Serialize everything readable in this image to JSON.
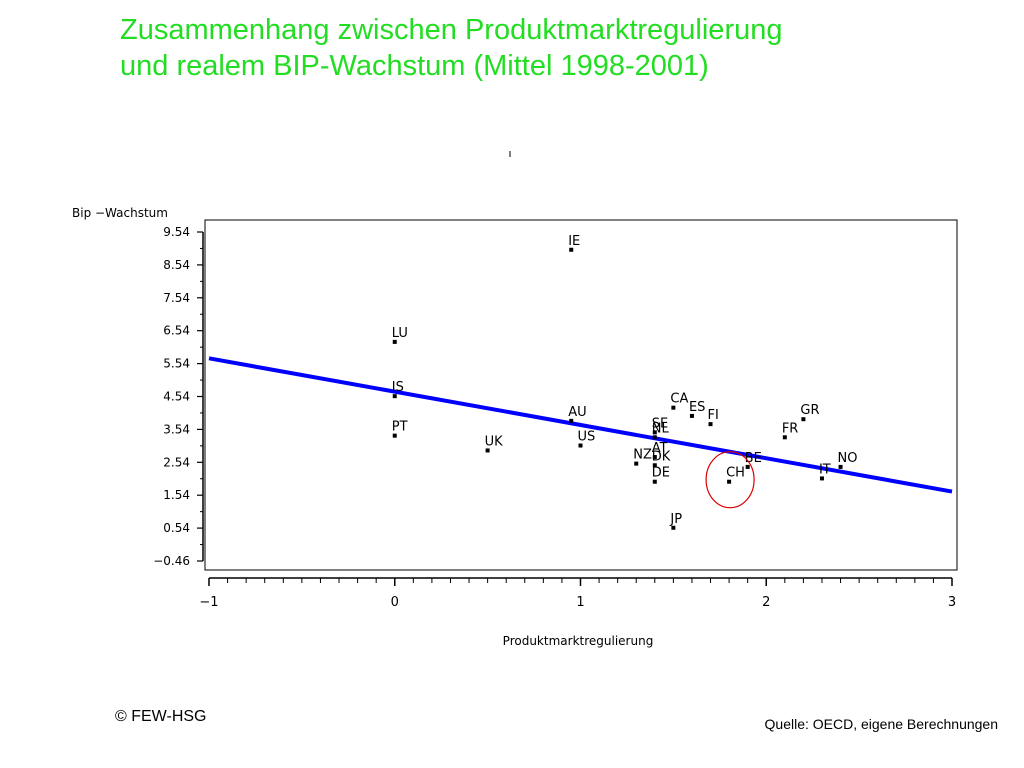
{
  "slide": {
    "title_line1": "Zusammenhang zwischen Produktmarktregulierung",
    "title_line2": "und realem BIP-Wachstum (Mittel 1998-2001)",
    "copyright": "© FEW-HSG",
    "source": "Quelle: OECD, eigene Berechnungen"
  },
  "colors": {
    "title": "#22dd22",
    "regression_line": "#0000ff",
    "highlight_circle": "#dd0000",
    "points": "#000000"
  },
  "chart_data": {
    "type": "scatter",
    "title": "",
    "xlabel": "Produktmarktregulierung",
    "ylabel": "Bip −Wachstum",
    "xlim": [
      -1,
      3
    ],
    "ylim": [
      -0.46,
      9.54
    ],
    "xticks": [
      -1,
      0,
      1,
      2,
      3
    ],
    "xtick_labels": [
      "−1",
      "0",
      "1",
      "2",
      "3"
    ],
    "yticks": [
      9.54,
      8.54,
      7.54,
      6.54,
      5.54,
      4.54,
      3.54,
      2.54,
      1.54,
      0.54,
      -0.46
    ],
    "ytick_labels": [
      "9.54",
      "8.54",
      "7.54",
      "6.54",
      "5.54",
      "4.54",
      "3.54",
      "2.54",
      "1.54",
      "0.54",
      "−0.46"
    ],
    "grid": false,
    "points": [
      {
        "label": "IE",
        "x": 0.95,
        "y": 9.0
      },
      {
        "label": "LU",
        "x": 0.0,
        "y": 6.2
      },
      {
        "label": "IS",
        "x": 0.0,
        "y": 4.55
      },
      {
        "label": "PT",
        "x": 0.0,
        "y": 3.35
      },
      {
        "label": "UK",
        "x": 0.5,
        "y": 2.9
      },
      {
        "label": "AU",
        "x": 0.95,
        "y": 3.8
      },
      {
        "label": "US",
        "x": 1.0,
        "y": 3.05
      },
      {
        "label": "CA",
        "x": 1.5,
        "y": 4.2
      },
      {
        "label": "ES",
        "x": 1.6,
        "y": 3.95
      },
      {
        "label": "FI",
        "x": 1.7,
        "y": 3.7
      },
      {
        "label": "SE",
        "x": 1.4,
        "y": 3.45
      },
      {
        "label": "NL",
        "x": 1.4,
        "y": 3.3
      },
      {
        "label": "AT",
        "x": 1.4,
        "y": 2.7
      },
      {
        "label": "NZ",
        "x": 1.3,
        "y": 2.5
      },
      {
        "label": "DK",
        "x": 1.4,
        "y": 2.45
      },
      {
        "label": "DE",
        "x": 1.4,
        "y": 1.95
      },
      {
        "label": "JP",
        "x": 1.5,
        "y": 0.55
      },
      {
        "label": "CH",
        "x": 1.8,
        "y": 1.95
      },
      {
        "label": "BE",
        "x": 1.9,
        "y": 2.4
      },
      {
        "label": "FR",
        "x": 2.1,
        "y": 3.3
      },
      {
        "label": "GR",
        "x": 2.2,
        "y": 3.85
      },
      {
        "label": "IT",
        "x": 2.3,
        "y": 2.05
      },
      {
        "label": "NO",
        "x": 2.4,
        "y": 2.4
      }
    ],
    "regression_line": {
      "x": [
        -1,
        3
      ],
      "y": [
        5.7,
        1.65
      ]
    },
    "highlighted_point": "CH"
  }
}
